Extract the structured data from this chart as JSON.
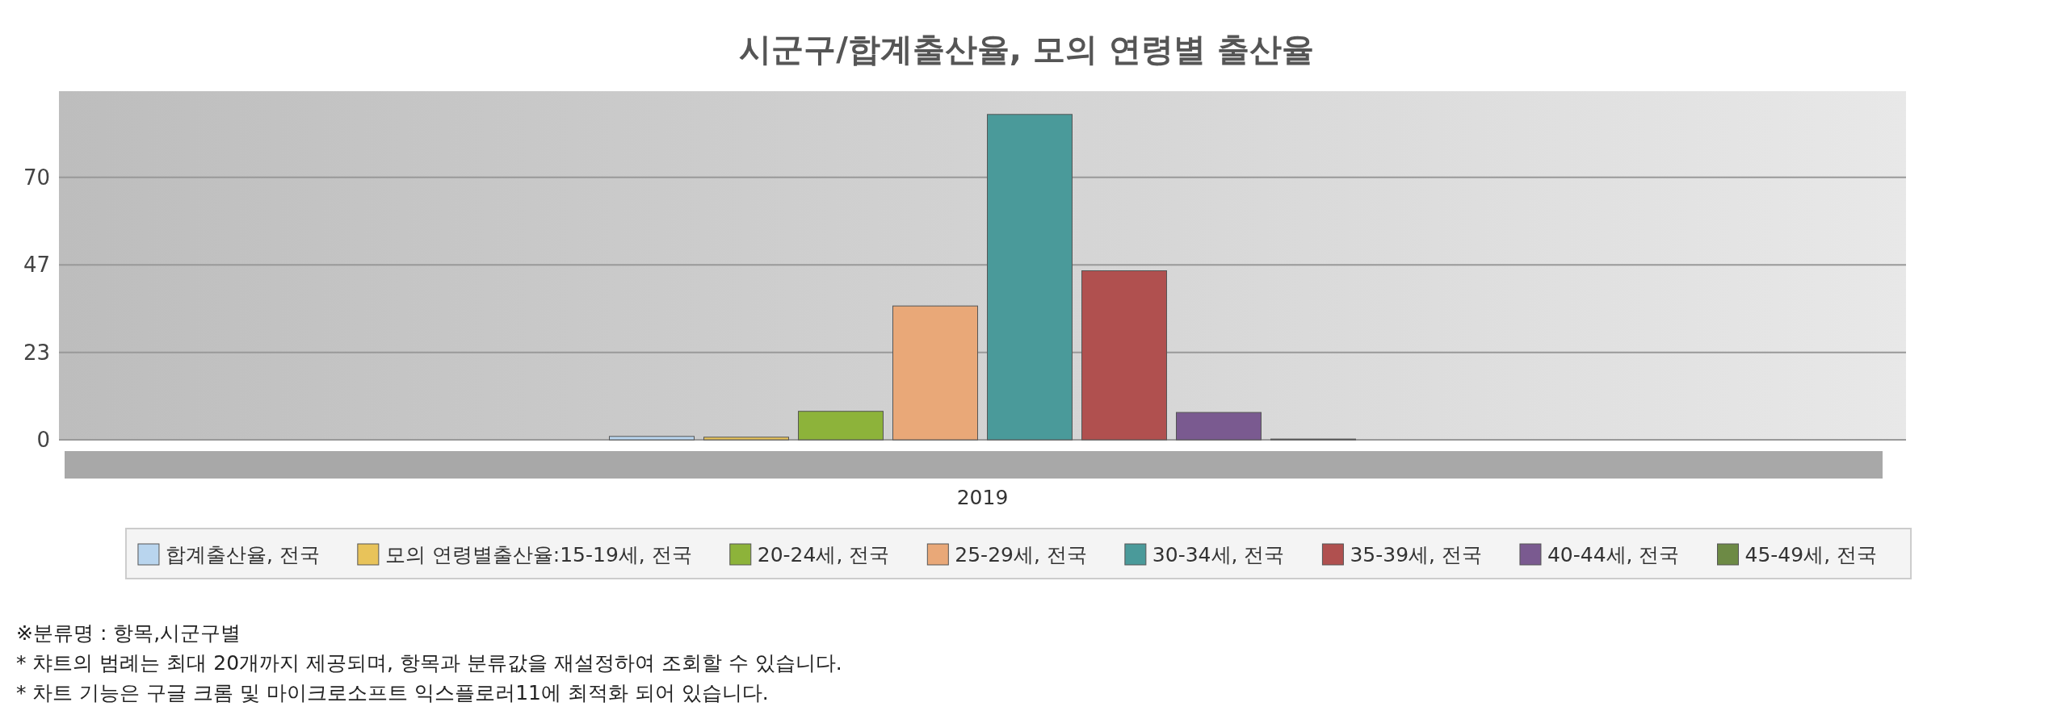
{
  "chart_data": {
    "type": "bar",
    "title": "시군구/합계출산율, 모의 연령별 출산율",
    "categories": [
      "2019"
    ],
    "series": [
      {
        "name": "합계출산율, 전국",
        "color": "#b9d5ee",
        "values": [
          0.9
        ]
      },
      {
        "name": "모의 연령별출산율:15-19세, 전국",
        "color": "#e8c35a",
        "values": [
          0.7
        ]
      },
      {
        "name": "20-24세, 전국",
        "color": "#8db33a",
        "values": [
          7.6
        ]
      },
      {
        "name": "25-29세, 전국",
        "color": "#e9a878",
        "values": [
          35.7
        ]
      },
      {
        "name": "30-34세, 전국",
        "color": "#4a9a9a",
        "values": [
          86.8
        ]
      },
      {
        "name": "35-39세, 전국",
        "color": "#b0504f",
        "values": [
          45.1
        ]
      },
      {
        "name": "40-44세, 전국",
        "color": "#7a5a90",
        "values": [
          7.3
        ]
      },
      {
        "name": "45-49세, 전국",
        "color": "#6d8a45",
        "values": [
          0.2
        ]
      }
    ],
    "ylim": [
      0,
      93
    ],
    "yticks": [
      0,
      {
        "value": 23.33,
        "label": "23"
      },
      {
        "value": 46.67,
        "label": "47"
      },
      70
    ],
    "grid": "y",
    "legend": "bottom",
    "annotations": [
      "※분류명 : 항목,시군구별",
      "* 챠트의 범례는 최대 20개까지 제공되며, 항목과 분류값을 재설정하여 조회할 수 있습니다.",
      "* 차트 기능은 구글 크롬 및 마이크로소프트 익스플로러11에 최적화 되어 있습니다."
    ]
  }
}
